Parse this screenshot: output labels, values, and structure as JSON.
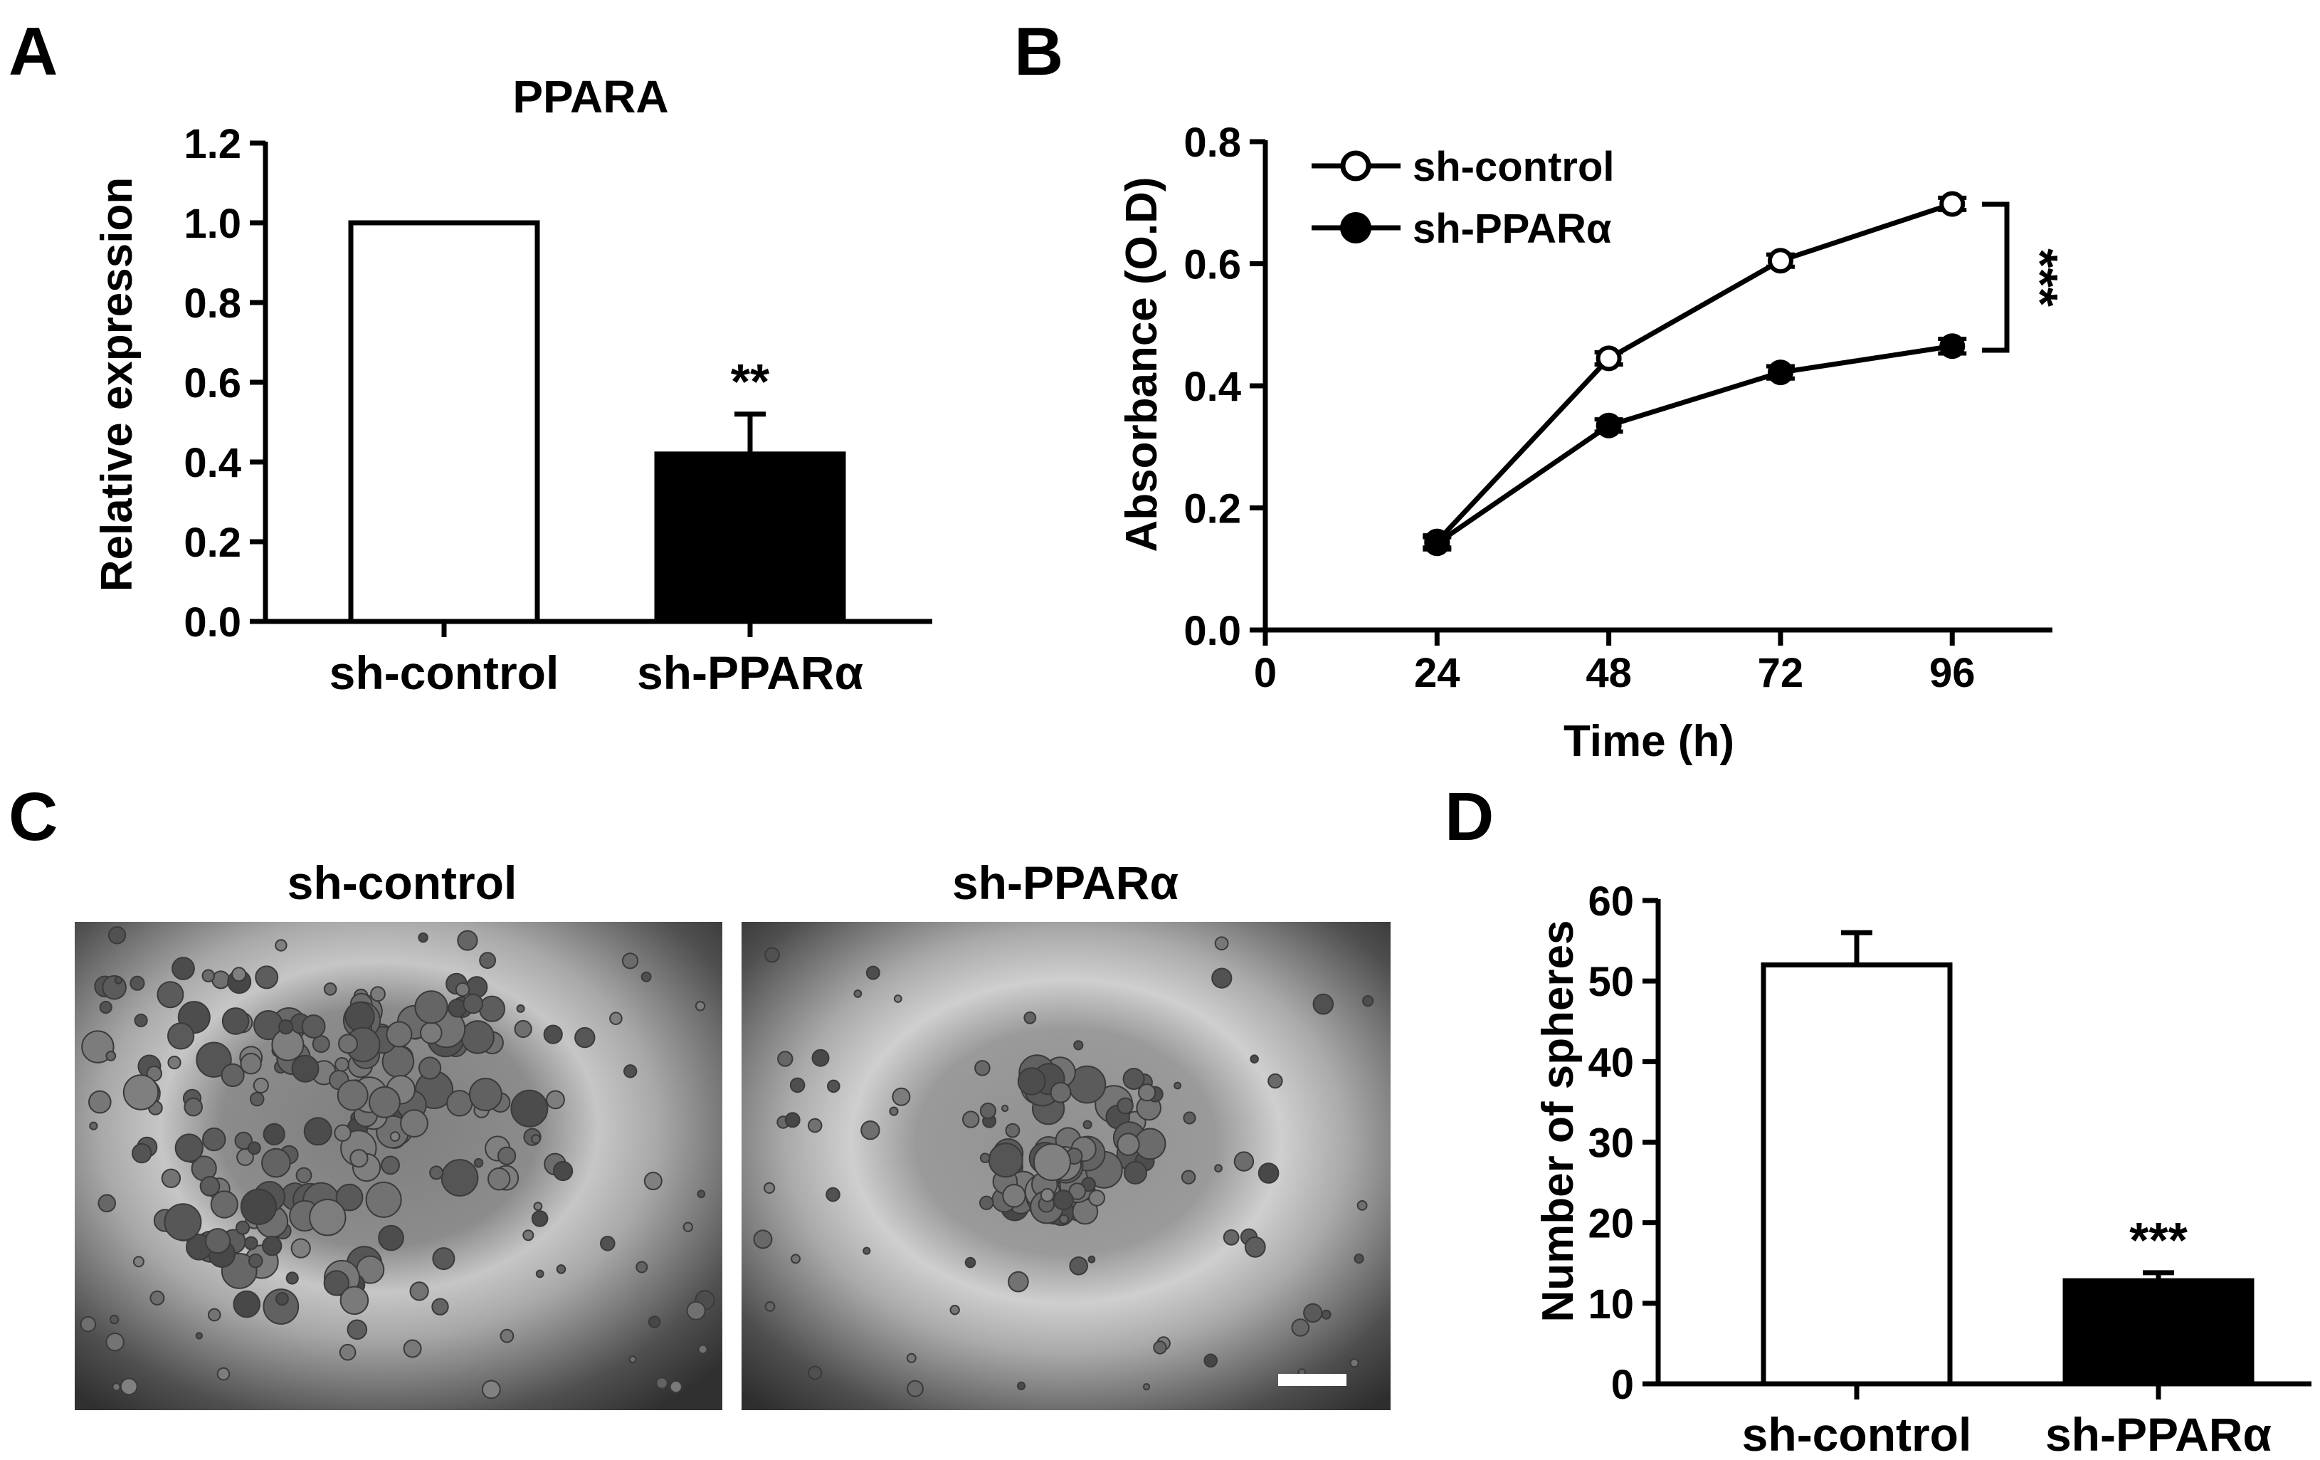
{
  "panels": {
    "A": "A",
    "B": "B",
    "C": "C",
    "D": "D"
  },
  "chart_data": [
    {
      "id": "A",
      "type": "bar",
      "title": "PPARA",
      "ylabel": "Relative expression",
      "xlabel": "",
      "categories": [
        "sh-control",
        "sh-PPARα"
      ],
      "values": [
        1.0,
        0.42
      ],
      "errors": [
        0,
        0.1
      ],
      "fills": [
        "#ffffff",
        "#000000"
      ],
      "ylim": [
        0,
        1.2
      ],
      "yticks": [
        "0.0",
        "0.2",
        "0.4",
        "0.6",
        "0.8",
        "1.0",
        "1.2"
      ],
      "annotations": [
        "",
        "**"
      ]
    },
    {
      "id": "B",
      "type": "line",
      "title": "",
      "xlabel": "Time (h)",
      "ylabel": "Absorbance (O.D)",
      "x": [
        24,
        48,
        72,
        96
      ],
      "xlim": [
        0,
        110
      ],
      "xticks": [
        "0",
        "24",
        "48",
        "72",
        "96"
      ],
      "ylim": [
        0,
        0.8
      ],
      "yticks": [
        "0.0",
        "0.2",
        "0.4",
        "0.6",
        "0.8"
      ],
      "legend_position": "top-left",
      "series": [
        {
          "name": "sh-control",
          "marker": "open-circle",
          "values": [
            0.145,
            0.445,
            0.605,
            0.698
          ],
          "errors": [
            0.01,
            0.01,
            0.01,
            0.01
          ]
        },
        {
          "name": "sh-PPARα",
          "marker": "filled-circle",
          "values": [
            0.142,
            0.335,
            0.422,
            0.465
          ],
          "errors": [
            0.01,
            0.01,
            0.01,
            0.012
          ]
        }
      ],
      "significance": "***"
    },
    {
      "id": "D",
      "type": "bar",
      "title": "",
      "ylabel": "Number of spheres",
      "xlabel": "",
      "categories": [
        "sh-control",
        "sh-PPARα"
      ],
      "values": [
        52,
        12.8
      ],
      "errors": [
        4,
        1
      ],
      "fills": [
        "#ffffff",
        "#000000"
      ],
      "ylim": [
        0,
        60
      ],
      "yticks": [
        "0",
        "10",
        "20",
        "30",
        "40",
        "50",
        "60"
      ],
      "annotations": [
        "",
        "***"
      ]
    }
  ],
  "images": {
    "left_label": "sh-control",
    "right_label": "sh-PPARα"
  }
}
